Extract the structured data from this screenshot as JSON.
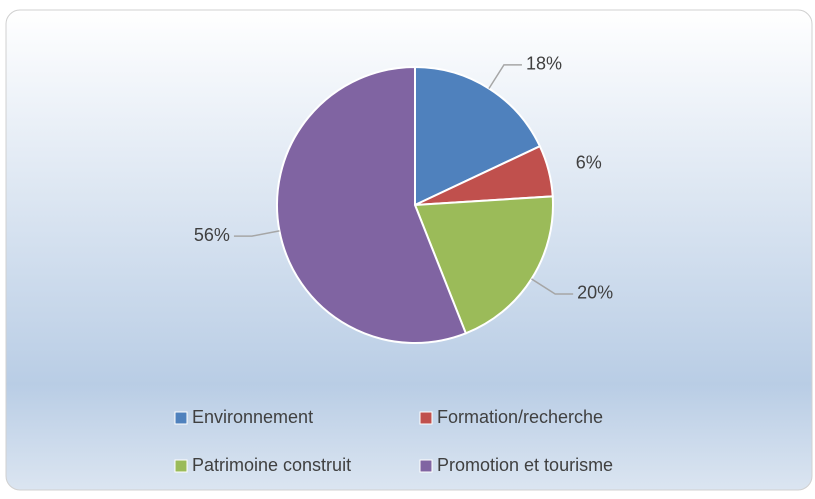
{
  "chart_data": {
    "type": "pie",
    "categories": [
      "Environnement",
      "Formation/recherche",
      "Patrimoine construit",
      "Promotion et tourisme"
    ],
    "values": [
      18,
      6,
      20,
      56
    ],
    "value_labels": [
      "18%",
      "6%",
      "20%",
      "56%"
    ],
    "colors": [
      "#4f81bd",
      "#c0504d",
      "#9bbb59",
      "#8064a2"
    ],
    "legend": "bottom"
  }
}
